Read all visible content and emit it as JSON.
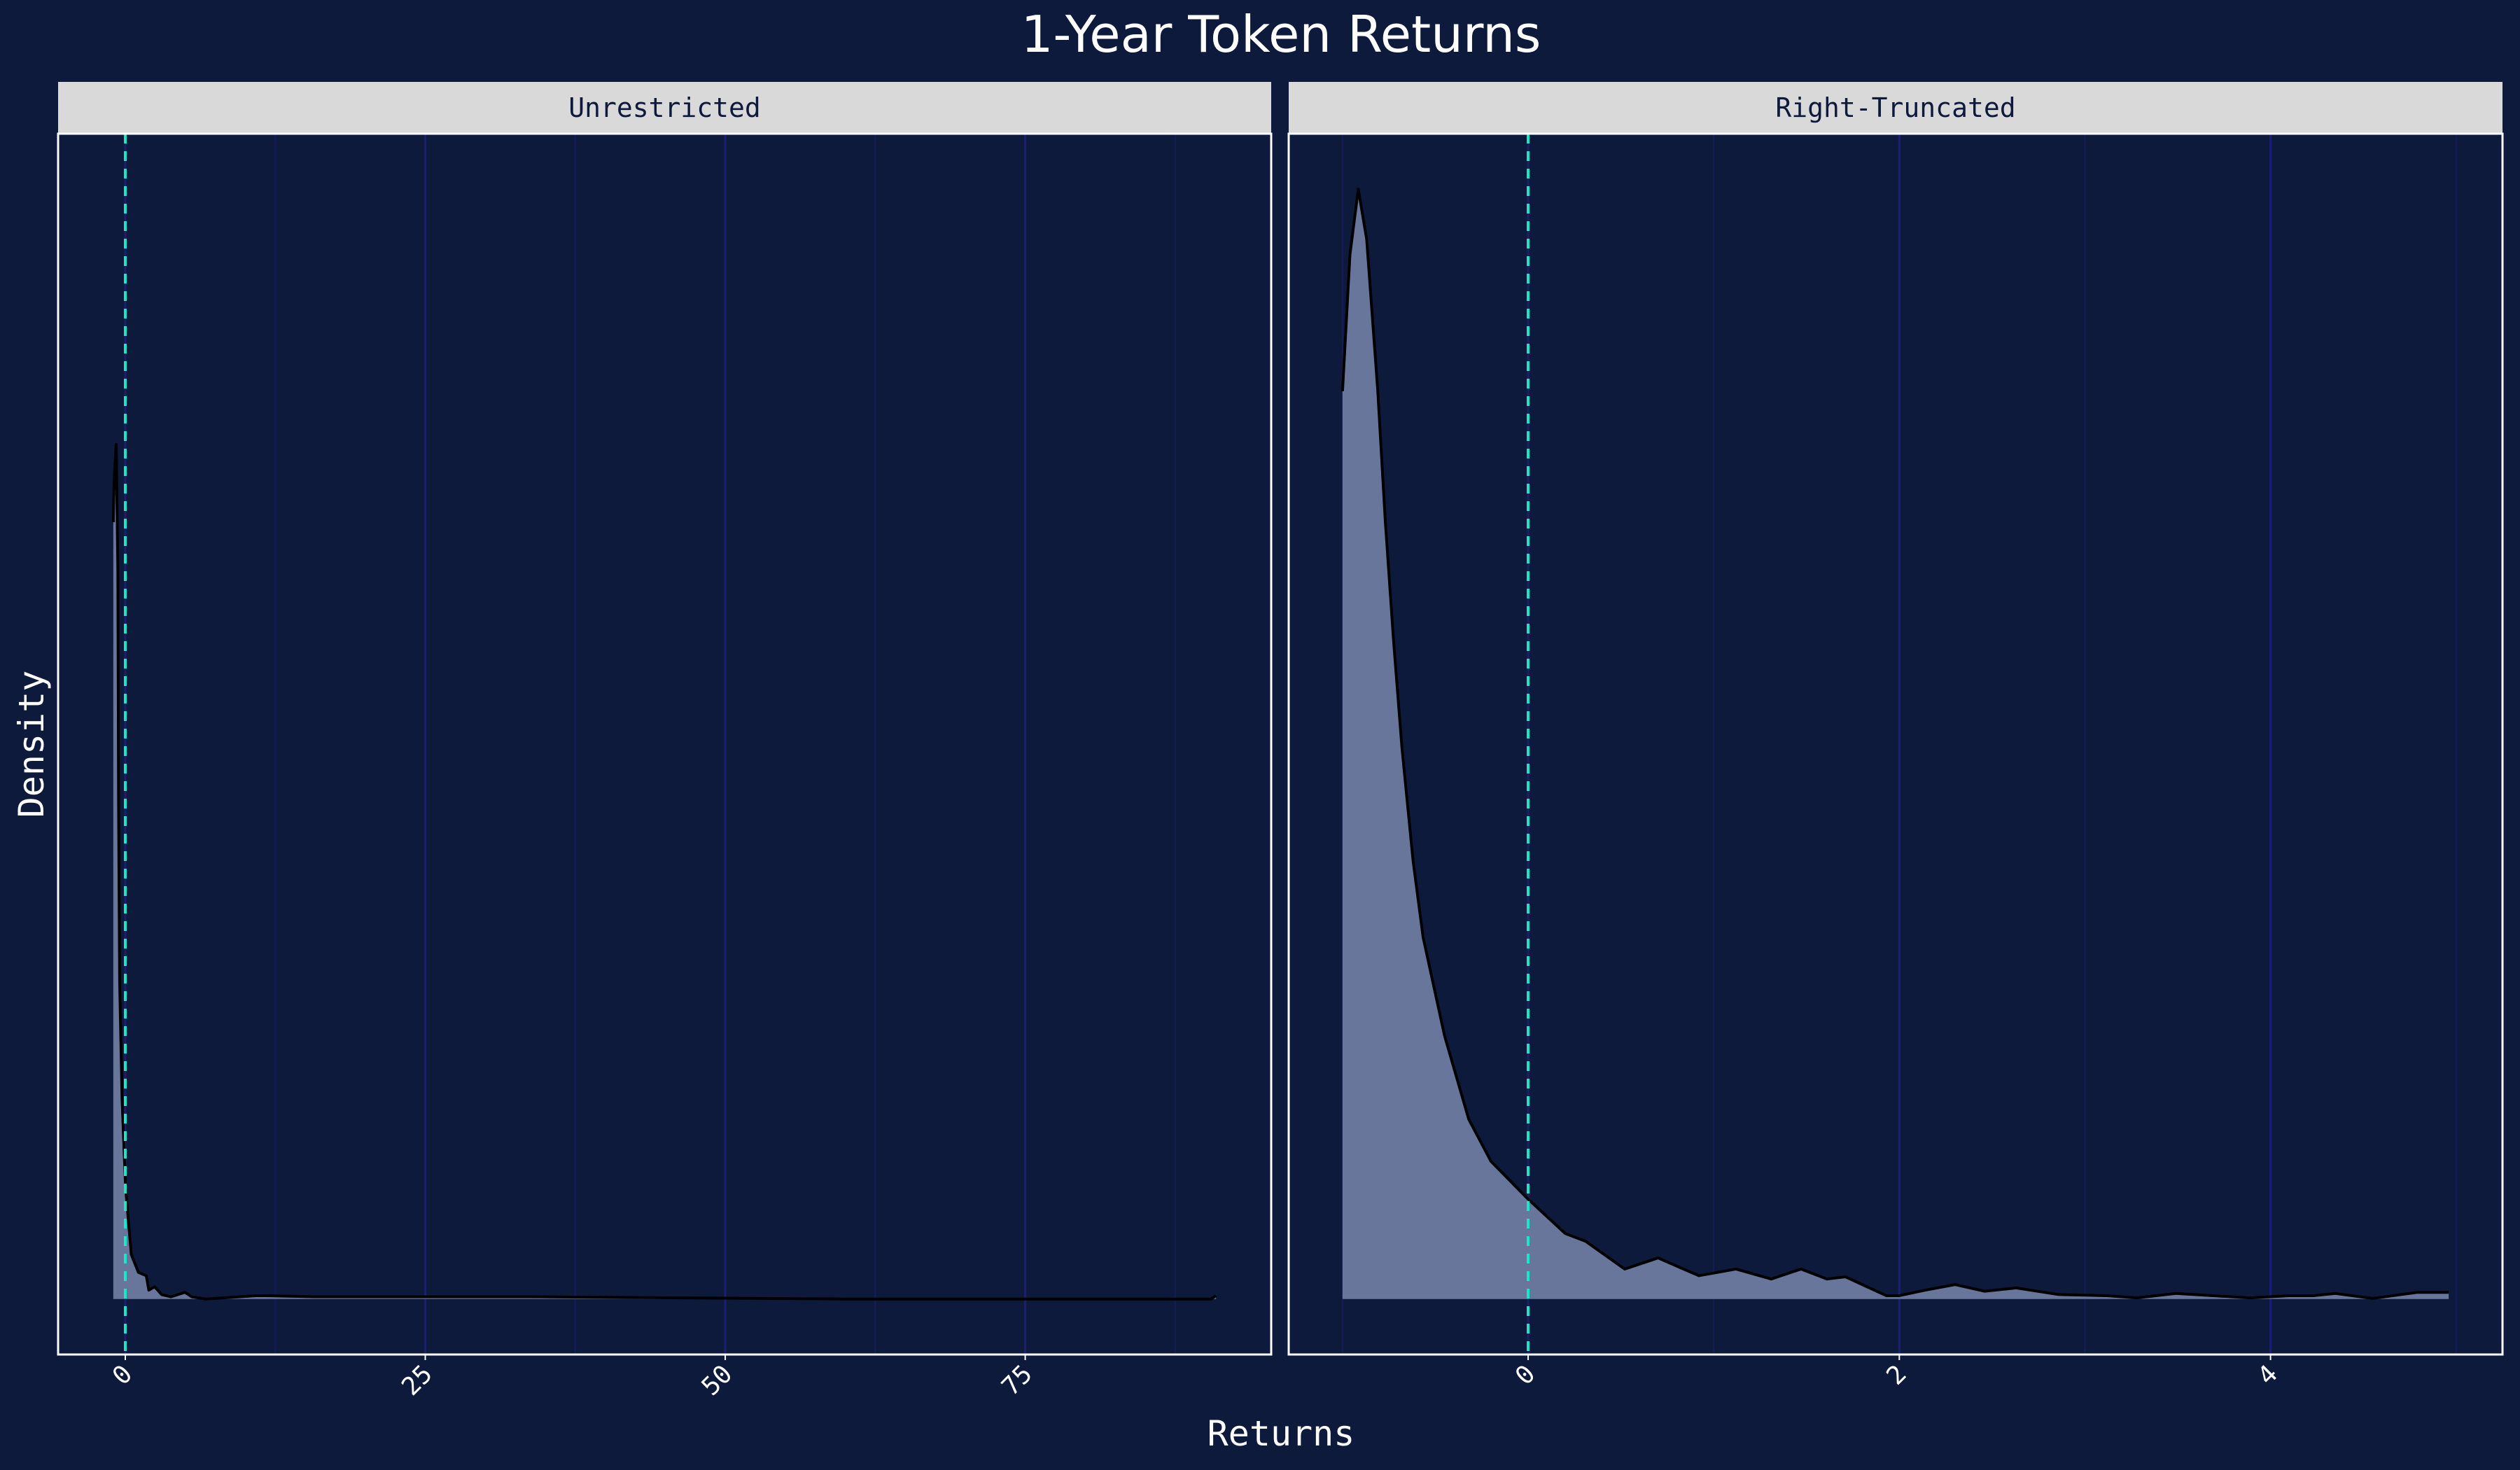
{
  "chart_data": {
    "type": "area",
    "title": "1-Year Token Returns",
    "xlabel": "Returns",
    "ylabel": "Density",
    "y_ticks_shown": false,
    "ylim": [
      -0.05,
      1.05
    ],
    "grid": "vertical only",
    "colors": {
      "background": "#0e1a3c",
      "strip": "#d9d9d9",
      "strip_text": "#0e1a3c",
      "fill": "#67769a",
      "line": "#000000",
      "grid_major": "#1d1f6e",
      "grid_minor": "#171c58",
      "reference_line": "#1de5c8",
      "panel_border": "#ffffff"
    },
    "reference_line": {
      "x": 0,
      "style": "dashed"
    },
    "panels": [
      {
        "label": "Unrestricted",
        "xlim": [
          -5.6,
          95.5
        ],
        "major_ticks": [
          0,
          25,
          50,
          75
        ],
        "tick_labels": [
          "0",
          "25",
          "50",
          "75"
        ],
        "minor_ticks": [
          12.5,
          37.5,
          62.5,
          87.5
        ],
        "x": [
          -1,
          -0.93,
          -0.76,
          -0.62,
          -0.56,
          -0.47,
          -0.27,
          0.02,
          0.31,
          0.5,
          1.09,
          1.75,
          1.96,
          2.45,
          3.03,
          3.8,
          4.97,
          5.54,
          6.7,
          10.9,
          11.6,
          15.7,
          21,
          30.5,
          34,
          60,
          90.5,
          90.9
        ],
        "y": [
          0.7,
          0.738,
          0.77,
          0.658,
          0.446,
          0.286,
          0.18,
          0.101,
          0.064,
          0.04,
          0.024,
          0.021,
          0.008,
          0.011,
          0.004,
          0.002,
          0.006,
          0.002,
          0.0,
          0.003,
          0.003,
          0.002,
          0.002,
          0.002,
          0.002,
          0.0,
          0.0,
          0.003
        ]
      },
      {
        "label": "Right-Truncated",
        "xlim": [
          -1.29,
          5.25
        ],
        "major_ticks": [
          0,
          2,
          4
        ],
        "tick_labels": [
          "0",
          "2",
          "4"
        ],
        "minor_ticks": [
          -1,
          1,
          3,
          5
        ],
        "x": [
          -1.0,
          -0.96,
          -0.915,
          -0.87,
          -0.81,
          -0.77,
          -0.725,
          -0.68,
          -0.62,
          -0.566,
          -0.45,
          -0.32,
          -0.2,
          0.0,
          0.2,
          0.31,
          0.52,
          0.7,
          0.92,
          1.12,
          1.31,
          1.47,
          1.61,
          1.71,
          1.93,
          2.0,
          2.14,
          2.3,
          2.46,
          2.63,
          2.86,
          3.12,
          3.28,
          3.49,
          3.89,
          4.1,
          4.23,
          4.35,
          4.55,
          4.79,
          4.96
        ],
        "y": [
          0.818,
          0.941,
          1.0,
          0.955,
          0.818,
          0.702,
          0.593,
          0.497,
          0.395,
          0.326,
          0.237,
          0.162,
          0.124,
          0.09,
          0.059,
          0.052,
          0.027,
          0.037,
          0.021,
          0.027,
          0.018,
          0.027,
          0.018,
          0.02,
          0.003,
          0.003,
          0.008,
          0.013,
          0.007,
          0.01,
          0.004,
          0.003,
          0.001,
          0.005,
          0.001,
          0.003,
          0.003,
          0.005,
          0.0005,
          0.006,
          0.006
        ]
      }
    ]
  }
}
